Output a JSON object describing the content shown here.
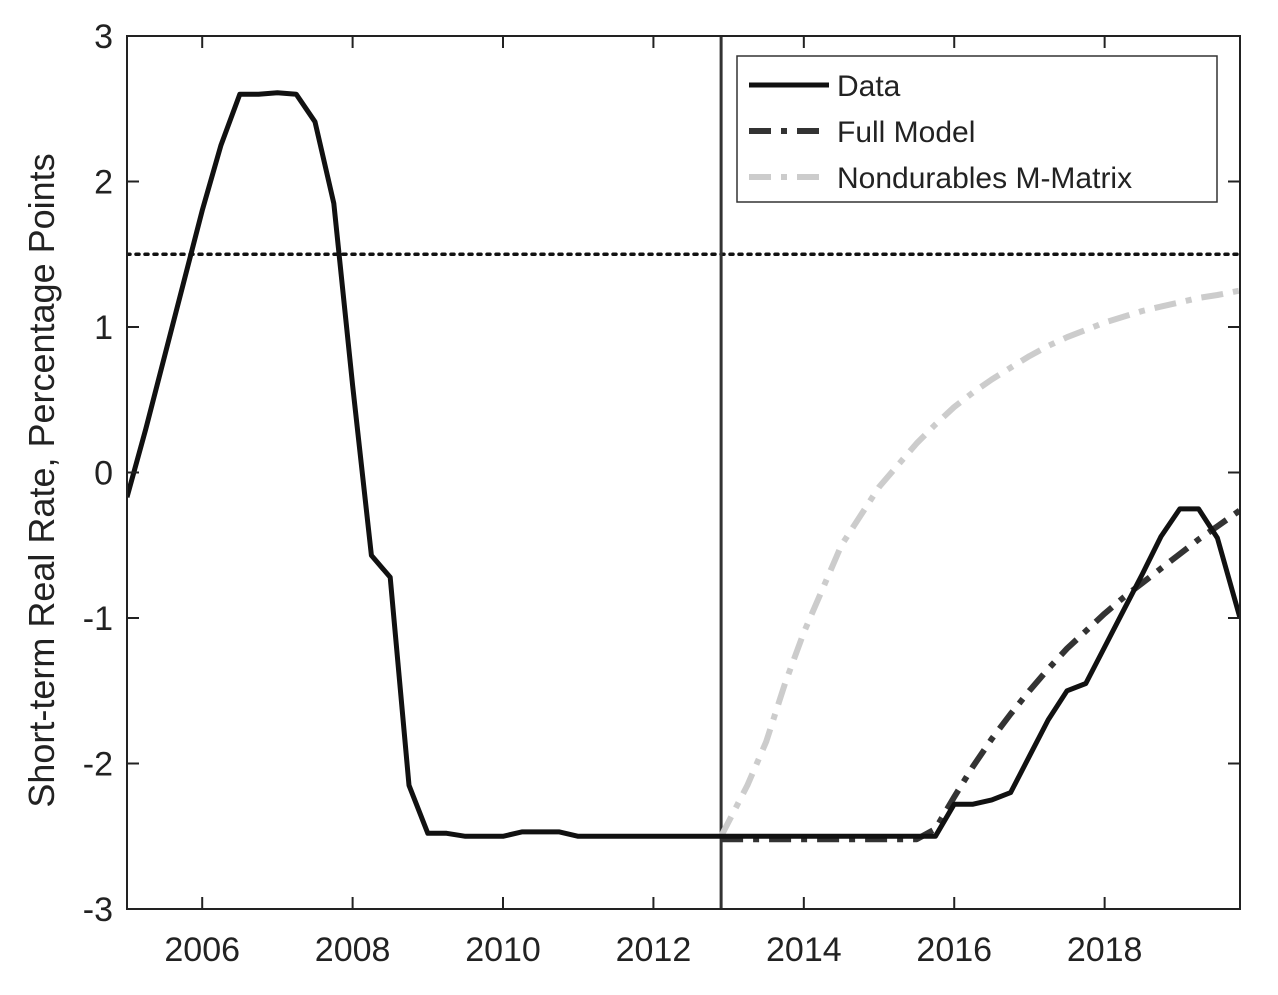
{
  "chart_data": {
    "type": "line",
    "title": "",
    "xlabel": "",
    "ylabel": "Short-term Real Rate, Percentage Points",
    "xlim": [
      2005,
      2019.8
    ],
    "ylim": [
      -3,
      3
    ],
    "x_ticks": [
      2006,
      2008,
      2010,
      2012,
      2014,
      2016,
      2018
    ],
    "x_tick_labels": [
      "2006",
      "2008",
      "2010",
      "2012",
      "2014",
      "2016",
      "2018"
    ],
    "y_ticks": [
      -3,
      -2,
      -1,
      0,
      1,
      2,
      3
    ],
    "y_tick_labels": [
      "-3",
      "-2",
      "-1",
      "0",
      "1",
      "2",
      "3"
    ],
    "grid": false,
    "legend_position": "top-right",
    "reference_lines": {
      "horizontal_dotted_y": 1.5,
      "vertical_solid_x": 2012.9
    },
    "series": [
      {
        "name": "Data",
        "style": "solid",
        "color": "#111111",
        "points": [
          [
            2005.0,
            -0.17
          ],
          [
            2005.25,
            0.3
          ],
          [
            2005.5,
            0.8
          ],
          [
            2005.75,
            1.3
          ],
          [
            2006.0,
            1.8
          ],
          [
            2006.25,
            2.25
          ],
          [
            2006.5,
            2.6
          ],
          [
            2006.75,
            2.6
          ],
          [
            2007.0,
            2.61
          ],
          [
            2007.25,
            2.6
          ],
          [
            2007.5,
            2.41
          ],
          [
            2007.75,
            1.85
          ],
          [
            2008.0,
            0.6
          ],
          [
            2008.25,
            -0.57
          ],
          [
            2008.5,
            -0.72
          ],
          [
            2008.75,
            -2.15
          ],
          [
            2009.0,
            -2.48
          ],
          [
            2009.25,
            -2.48
          ],
          [
            2009.5,
            -2.5
          ],
          [
            2009.75,
            -2.5
          ],
          [
            2010.0,
            -2.5
          ],
          [
            2010.25,
            -2.47
          ],
          [
            2010.5,
            -2.47
          ],
          [
            2010.75,
            -2.47
          ],
          [
            2011.0,
            -2.5
          ],
          [
            2011.5,
            -2.5
          ],
          [
            2012.0,
            -2.5
          ],
          [
            2012.5,
            -2.5
          ],
          [
            2012.9,
            -2.5
          ],
          [
            2013.5,
            -2.5
          ],
          [
            2014.0,
            -2.5
          ],
          [
            2014.5,
            -2.5
          ],
          [
            2015.0,
            -2.5
          ],
          [
            2015.5,
            -2.5
          ],
          [
            2015.75,
            -2.5
          ],
          [
            2016.0,
            -2.28
          ],
          [
            2016.25,
            -2.28
          ],
          [
            2016.5,
            -2.25
          ],
          [
            2016.75,
            -2.2
          ],
          [
            2017.0,
            -1.95
          ],
          [
            2017.25,
            -1.7
          ],
          [
            2017.5,
            -1.5
          ],
          [
            2017.75,
            -1.45
          ],
          [
            2018.0,
            -1.2
          ],
          [
            2018.25,
            -0.95
          ],
          [
            2018.5,
            -0.7
          ],
          [
            2018.75,
            -0.44
          ],
          [
            2019.0,
            -0.25
          ],
          [
            2019.25,
            -0.25
          ],
          [
            2019.5,
            -0.45
          ],
          [
            2019.8,
            -1.0
          ]
        ]
      },
      {
        "name": "Full Model",
        "style": "dash-dot",
        "color": "#333333",
        "points": [
          [
            2012.9,
            -2.52
          ],
          [
            2013.5,
            -2.52
          ],
          [
            2014.0,
            -2.52
          ],
          [
            2014.5,
            -2.52
          ],
          [
            2015.0,
            -2.52
          ],
          [
            2015.5,
            -2.52
          ],
          [
            2015.75,
            -2.45
          ],
          [
            2016.0,
            -2.23
          ],
          [
            2016.25,
            -2.02
          ],
          [
            2016.5,
            -1.83
          ],
          [
            2016.75,
            -1.66
          ],
          [
            2017.0,
            -1.5
          ],
          [
            2017.25,
            -1.35
          ],
          [
            2017.5,
            -1.21
          ],
          [
            2017.75,
            -1.09
          ],
          [
            2018.0,
            -0.97
          ],
          [
            2018.25,
            -0.86
          ],
          [
            2018.5,
            -0.76
          ],
          [
            2018.75,
            -0.66
          ],
          [
            2019.0,
            -0.56
          ],
          [
            2019.25,
            -0.46
          ],
          [
            2019.5,
            -0.37
          ],
          [
            2019.8,
            -0.26
          ]
        ]
      },
      {
        "name": "Nondurables M-Matrix",
        "style": "dash-dot",
        "color": "#cccccc",
        "points": [
          [
            2012.9,
            -2.5
          ],
          [
            2013.25,
            -2.15
          ],
          [
            2013.5,
            -1.85
          ],
          [
            2013.75,
            -1.45
          ],
          [
            2014.0,
            -1.1
          ],
          [
            2014.25,
            -0.8
          ],
          [
            2014.5,
            -0.5
          ],
          [
            2014.75,
            -0.3
          ],
          [
            2015.0,
            -0.1
          ],
          [
            2015.25,
            0.05
          ],
          [
            2015.5,
            0.2
          ],
          [
            2015.75,
            0.33
          ],
          [
            2016.0,
            0.45
          ],
          [
            2016.25,
            0.55
          ],
          [
            2016.5,
            0.64
          ],
          [
            2016.75,
            0.72
          ],
          [
            2017.0,
            0.8
          ],
          [
            2017.25,
            0.87
          ],
          [
            2017.5,
            0.93
          ],
          [
            2017.75,
            0.98
          ],
          [
            2018.0,
            1.03
          ],
          [
            2018.25,
            1.07
          ],
          [
            2018.5,
            1.11
          ],
          [
            2018.75,
            1.14
          ],
          [
            2019.0,
            1.17
          ],
          [
            2019.25,
            1.2
          ],
          [
            2019.5,
            1.22
          ],
          [
            2019.8,
            1.25
          ]
        ]
      }
    ]
  }
}
